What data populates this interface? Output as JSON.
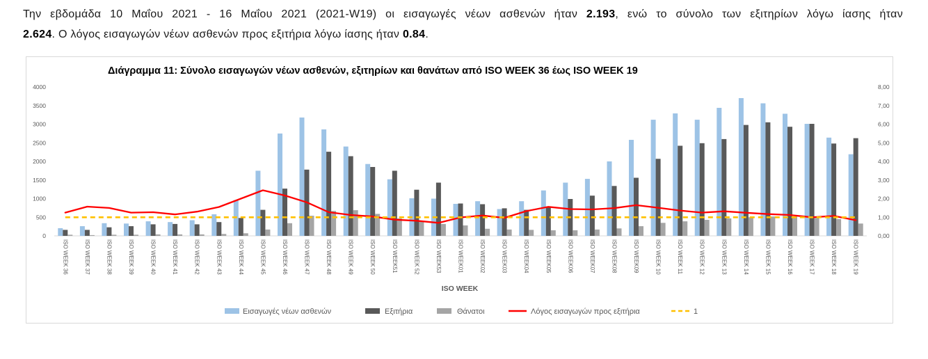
{
  "summary": {
    "text_1": "Την εβδομάδα 10 Μαΐου 2021 - 16 Μαΐου 2021 (2021-W19) οι εισαγωγές νέων ασθενών ήταν ",
    "admissions": "2.193",
    "text_2": ", ενώ το σύνολο των εξιτηρίων λόγω ίασης ήταν",
    "discharges": "2.624",
    "text_3": ". Ο λόγος εισαγωγών νέων ασθενών προς εξιτήρια λόγω ίασης ήταν ",
    "ratio": "0.84",
    "text_4": "."
  },
  "chart_data": {
    "type": "bar",
    "title": "Διάγραμμα 11: Σύνολο εισαγωγών νέων ασθενών, εξιτηρίων και θανάτων από ISO WEEK 36 έως ISO WEEK 19",
    "xlabel": "ISO WEEK",
    "ylabel": "",
    "ylim": [
      0,
      4000
    ],
    "y2lim": [
      0,
      8
    ],
    "yticks": [
      "0",
      "500",
      "1000",
      "1500",
      "2000",
      "2500",
      "3000",
      "3500",
      "4000"
    ],
    "y2ticks": [
      "0,00",
      "1,00",
      "2,00",
      "3,00",
      "4,00",
      "5,00",
      "6,00",
      "7,00",
      "8,00"
    ],
    "grid": false,
    "legend": "bottom",
    "categories": [
      "ISO WEEK 36",
      "ISO WEEK 37",
      "ISO WEEK 38",
      "ISO WEEK 39",
      "ISO WEEK 40",
      "ISO WEEK 41",
      "ISO WEEK 42",
      "ISO WEEK 43",
      "ISO WEEK 44",
      "ISO WEEK 45",
      "ISO WEEK 46",
      "ISO WEEK 47",
      "ISO WEEK 48",
      "ISO WEEK 49",
      "ISO WEEK 50",
      "ISO WEEK51",
      "ISO WEEK 52",
      "ISO WEEK53",
      "ISO WEEK01",
      "ISO WEEK02",
      "ISO WEEK03",
      "ISO WEEK04",
      "ISO WEEK05",
      "ISO WEEK06",
      "ISO WEEK07",
      "ISO WEEK08",
      "ISO WEEK09",
      "ISO WEEK 10",
      "ISO WEEK 11",
      "ISO WEEK 12",
      "ISO WEEK 13",
      "ISO WEEK 14",
      "ISO WEEK 15",
      "ISO WEEK 16",
      "ISO WEEK 17",
      "ISO WEEK 18",
      "ISO WEEK 19"
    ],
    "series": [
      {
        "name": "Εισαγωγές νέων ασθενών",
        "type": "bar",
        "axis": "left",
        "color": "#9dc3e6",
        "values": [
          205,
          260,
          340,
          330,
          390,
          370,
          420,
          580,
          960,
          1750,
          2750,
          3180,
          2860,
          2400,
          1930,
          1520,
          1010,
          1000,
          860,
          930,
          720,
          930,
          1220,
          1430,
          1530,
          2000,
          2580,
          3120,
          3290,
          3120,
          3440,
          3700,
          3560,
          3280,
          3010,
          2640,
          2193
        ]
      },
      {
        "name": "Εξιτήρια",
        "type": "bar",
        "axis": "left",
        "color": "#595959",
        "values": [
          160,
          160,
          230,
          260,
          310,
          320,
          310,
          370,
          480,
          700,
          1270,
          1780,
          2260,
          2140,
          1850,
          1750,
          1240,
          1430,
          870,
          850,
          740,
          700,
          780,
          990,
          1080,
          1340,
          1560,
          2070,
          2420,
          2490,
          2600,
          2980,
          3050,
          2930,
          3010,
          2480,
          2624
        ]
      },
      {
        "name": "Θάνατοι",
        "type": "bar",
        "axis": "left",
        "color": "#a5a5a5",
        "values": [
          30,
          20,
          30,
          30,
          40,
          40,
          40,
          50,
          70,
          170,
          340,
          540,
          670,
          690,
          590,
          470,
          390,
          320,
          280,
          190,
          170,
          160,
          150,
          150,
          170,
          200,
          260,
          350,
          390,
          430,
          470,
          500,
          520,
          520,
          480,
          450,
          330
        ]
      },
      {
        "name": "Λόγος εισαγωγών προς εξιτήρια",
        "type": "line",
        "axis": "right",
        "color": "#ff0000",
        "style": "solid",
        "values": [
          1.25,
          1.57,
          1.5,
          1.25,
          1.27,
          1.15,
          1.3,
          1.55,
          2.0,
          2.45,
          2.17,
          1.8,
          1.27,
          1.12,
          1.04,
          0.87,
          0.81,
          0.7,
          0.99,
          1.09,
          0.97,
          1.33,
          1.56,
          1.44,
          1.42,
          1.49,
          1.65,
          1.51,
          1.36,
          1.25,
          1.32,
          1.24,
          1.17,
          1.12,
          1.0,
          1.07,
          0.84
        ]
      },
      {
        "name": "1",
        "type": "line",
        "axis": "right",
        "color": "#ffc000",
        "style": "dashed",
        "values": [
          1,
          1,
          1,
          1,
          1,
          1,
          1,
          1,
          1,
          1,
          1,
          1,
          1,
          1,
          1,
          1,
          1,
          1,
          1,
          1,
          1,
          1,
          1,
          1,
          1,
          1,
          1,
          1,
          1,
          1,
          1,
          1,
          1,
          1,
          1,
          1,
          1
        ]
      }
    ]
  }
}
